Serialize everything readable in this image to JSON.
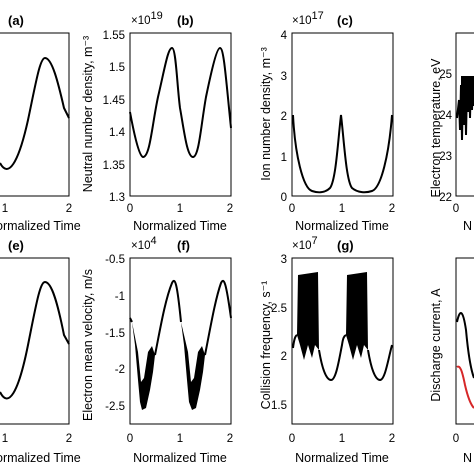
{
  "figure": {
    "panels": [
      {
        "id": "a",
        "label": "(a)",
        "ylabel": "",
        "xlabel": "ormalized Time",
        "yticks": [],
        "xticks": [
          "1",
          "2"
        ],
        "multiplier": ""
      },
      {
        "id": "b",
        "label": "(b)",
        "ylabel": "Neutral number density, m⁻³",
        "xlabel": "Normalized Time",
        "yticks": [
          "1.3",
          "1.35",
          "1.4",
          "1.45",
          "1.5",
          "1.55"
        ],
        "xticks": [
          "0",
          "1",
          "2"
        ],
        "multiplier": "×10",
        "multiplier_exp": "19"
      },
      {
        "id": "c",
        "label": "(c)",
        "ylabel": "Ion number density, m⁻³",
        "xlabel": "Normalized Time",
        "yticks": [
          "0",
          "1",
          "2",
          "3",
          "4"
        ],
        "xticks": [
          "0",
          "1",
          "2"
        ],
        "multiplier": "×10",
        "multiplier_exp": "17"
      },
      {
        "id": "d",
        "label": "",
        "ylabel": "Electron temperature, eV",
        "xlabel": "N",
        "yticks": [
          "22",
          "23",
          "24",
          "25"
        ],
        "xticks": [
          "0"
        ],
        "multiplier": ""
      },
      {
        "id": "e",
        "label": "(e)",
        "ylabel": "",
        "xlabel": "ormalized Time",
        "yticks": [],
        "xticks": [
          "1",
          "2"
        ],
        "multiplier": ""
      },
      {
        "id": "f",
        "label": "(f)",
        "ylabel": "Electron mean velocity, m/s",
        "xlabel": "Normalized Time",
        "yticks": [
          "-0.5",
          "-1",
          "-1.5",
          "-2",
          "-2.5"
        ],
        "xticks": [
          "0",
          "1",
          "2"
        ],
        "multiplier": "×10",
        "multiplier_exp": "4"
      },
      {
        "id": "g",
        "label": "(g)",
        "ylabel": "Collision frequency, s⁻¹",
        "xlabel": "Normalized Time",
        "yticks": [
          "1.5",
          "2",
          "2.5",
          "3"
        ],
        "xticks": [
          "0",
          "1",
          "2"
        ],
        "multiplier": "×10",
        "multiplier_exp": "7"
      },
      {
        "id": "h",
        "label": "",
        "ylabel": "Discharge current, A",
        "xlabel": "N",
        "yticks": [],
        "xticks": [
          "0"
        ],
        "multiplier": ""
      }
    ],
    "colors": {
      "line": "#000000",
      "accent": "#d62728"
    }
  },
  "chart_data": [
    {
      "panel": "a",
      "type": "line",
      "xlabel": "Normalized Time",
      "x_range": [
        0,
        2
      ],
      "series": [
        {
          "x": [
            0,
            0.5,
            1.0,
            1.3,
            1.6,
            2.0
          ],
          "values": "sinusoid, period 1, peak at t=1.3"
        }
      ]
    },
    {
      "panel": "b",
      "type": "line",
      "xlabel": "Normalized Time",
      "ylabel": "Neutral number density, m⁻³",
      "ylim": [
        1.3,
        1.55
      ],
      "scale": "1e19",
      "series": [
        {
          "x": [
            0,
            0.25,
            0.55,
            0.77,
            1.0,
            1.25,
            1.55,
            1.77,
            2.0
          ],
          "values": [
            1.43,
            1.36,
            1.47,
            1.52,
            1.43,
            1.36,
            1.47,
            1.52,
            1.41
          ]
        }
      ]
    },
    {
      "panel": "c",
      "type": "line",
      "xlabel": "Normalized Time",
      "ylabel": "Ion number density, m⁻³",
      "ylim": [
        0,
        4
      ],
      "scale": "1e17",
      "series": [
        {
          "x": [
            0,
            0.1,
            0.3,
            0.5,
            0.7,
            0.9,
            1.0,
            1.1,
            1.3,
            1.5,
            1.7,
            1.9,
            2.0
          ],
          "values": [
            2.1,
            1.0,
            0.2,
            0.1,
            0.2,
            1.0,
            2.1,
            1.0,
            0.2,
            0.1,
            0.2,
            1.0,
            2.1
          ]
        }
      ]
    },
    {
      "panel": "d",
      "type": "line",
      "ylabel": "Electron temperature, eV",
      "ylim": [
        22,
        25.5
      ],
      "series": [
        {
          "x": [
            0,
            0.1,
            0.2,
            0.3
          ],
          "values": [
            24.0,
            24.5,
            25.0,
            24.8
          ]
        }
      ]
    },
    {
      "panel": "e",
      "type": "line",
      "xlabel": "Normalized Time",
      "x_range": [
        0,
        2
      ],
      "series": [
        {
          "x": [
            0,
            0.5,
            1.0,
            1.3,
            1.6,
            2.0
          ],
          "values": "sinusoid, period 1, peak at t=1.3"
        }
      ]
    },
    {
      "panel": "f",
      "type": "line",
      "xlabel": "Normalized Time",
      "ylabel": "Electron mean velocity, m/s",
      "ylim": [
        -2.6,
        -0.5
      ],
      "scale": "1e4",
      "series": [
        {
          "x": [
            0,
            0.15,
            0.3,
            0.5,
            0.8,
            1.0,
            1.15,
            1.3,
            1.5,
            1.8,
            2.0
          ],
          "values": [
            -1.4,
            -1.8,
            -2.5,
            -1.6,
            -0.7,
            -1.4,
            -1.8,
            -2.5,
            -1.6,
            -0.7,
            -1.3
          ]
        }
      ]
    },
    {
      "panel": "g",
      "type": "line",
      "xlabel": "Normalized Time",
      "ylabel": "Collision frequency, s⁻¹",
      "ylim": [
        1.4,
        3.0
      ],
      "scale": "1e7",
      "series": [
        {
          "x": [
            0,
            0.1,
            0.2,
            0.4,
            0.5,
            0.7,
            0.8,
            1.0,
            1.1,
            1.2,
            1.4,
            1.5,
            1.7,
            1.8,
            2.0
          ],
          "values": [
            1.85,
            2.2,
            2.8,
            2.8,
            2.0,
            1.6,
            1.7,
            1.9,
            2.2,
            2.8,
            2.8,
            2.0,
            1.6,
            1.7,
            1.9
          ]
        }
      ]
    },
    {
      "panel": "h",
      "type": "line",
      "ylabel": "Discharge current, A",
      "series": [
        {
          "color": "#000000",
          "values": "decaying, partial"
        },
        {
          "color": "#d62728",
          "values": "decaying, partial"
        }
      ]
    }
  ]
}
